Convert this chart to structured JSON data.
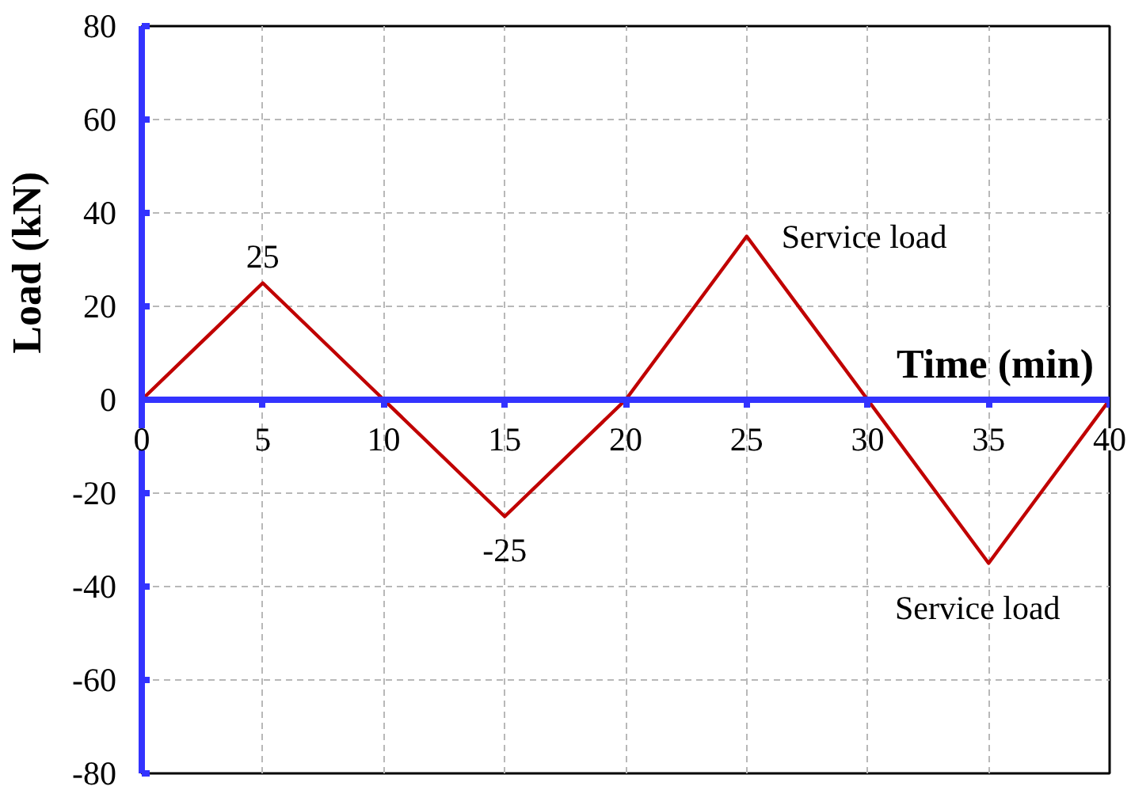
{
  "chart_data": {
    "type": "line",
    "xlabel": "Time (min)",
    "ylabel": "Load (kN)",
    "x": [
      0,
      5,
      10,
      15,
      20,
      25,
      30,
      35,
      40
    ],
    "series": [
      {
        "color": "#c00000",
        "values": [
          0,
          25,
          0,
          -25,
          0,
          35,
          0,
          -35,
          0
        ],
        "value_labels": [
          null,
          "25",
          null,
          "-25",
          null,
          null,
          null,
          null,
          null
        ]
      }
    ],
    "xlim": [
      0,
      40
    ],
    "ylim": [
      -80,
      80
    ],
    "xticks": [
      0,
      5,
      10,
      15,
      20,
      25,
      30,
      35,
      40
    ],
    "yticks": [
      -80,
      -60,
      -40,
      -20,
      0,
      20,
      40,
      60,
      80
    ],
    "grid": true,
    "marker": "none",
    "line_style": "solid",
    "annotations": [
      {
        "text": "Service load",
        "x": 25,
        "y": 35
      },
      {
        "text": "Service load",
        "x": 35,
        "y": -35
      }
    ]
  }
}
